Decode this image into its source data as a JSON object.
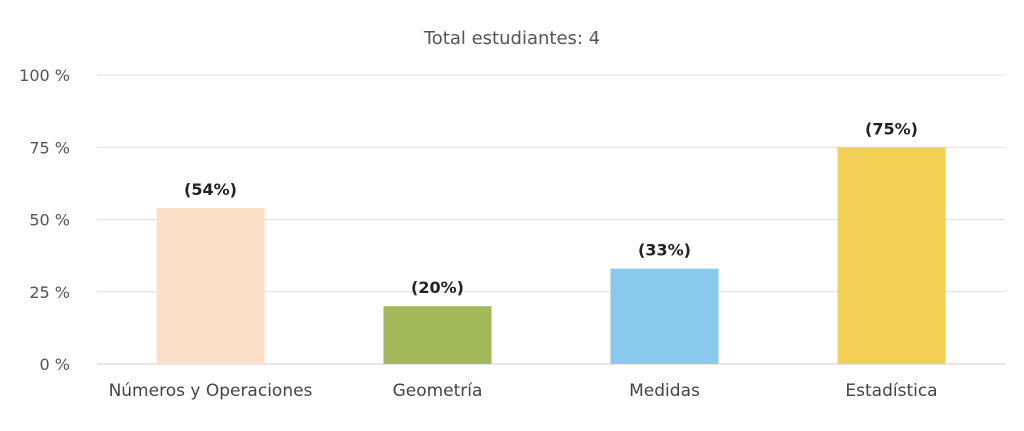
{
  "chart_data": {
    "type": "bar",
    "title": "Total estudiantes: 4",
    "categories": [
      "Números y Operaciones",
      "Geometría",
      "Medidas",
      "Estadística"
    ],
    "values": [
      54,
      20,
      33,
      75
    ],
    "data_labels": [
      "(54%)",
      "(20%)",
      "(33%)",
      "(75%)"
    ],
    "colors": [
      "#fde0c8",
      "#a2b85a",
      "#88c9ec",
      "#f2d055"
    ],
    "ylim": [
      0,
      100
    ],
    "yticks": [
      0,
      25,
      50,
      75,
      100
    ],
    "ytick_labels": [
      "0 %",
      "25 %",
      "50 %",
      "75 %",
      "100 %"
    ],
    "grid": true,
    "legend": "none"
  }
}
